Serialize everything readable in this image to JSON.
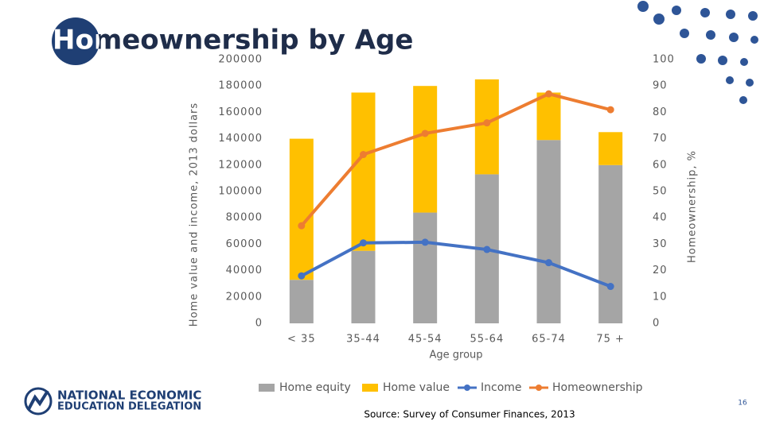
{
  "chart_data": {
    "type": "bar",
    "stacked": true,
    "title": "Homeownership by Age",
    "xlabel": "Age group",
    "ylabel": "Home value and income, 2013 dollars",
    "y2label": "Homeownership, %",
    "categories": [
      "< 35",
      "35-44",
      "45-54",
      "55-64",
      "65-74",
      "75 +"
    ],
    "series": [
      {
        "name": "Home equity",
        "type": "bar",
        "color": "#a5a5a5",
        "values": [
          33000,
          55000,
          84000,
          113000,
          139000,
          120000
        ]
      },
      {
        "name": "Home value",
        "type": "bar",
        "color": "#ffc000",
        "values": [
          107000,
          120000,
          96000,
          72000,
          36000,
          25000
        ]
      },
      {
        "name": "Income",
        "type": "line",
        "color": "#4472c4",
        "values": [
          36000,
          61000,
          61500,
          56000,
          46000,
          28000
        ]
      },
      {
        "name": "Homeownership",
        "type": "line",
        "color": "#ed7d31",
        "axis": "y2",
        "values": [
          37,
          64,
          72,
          76,
          87,
          81
        ]
      }
    ],
    "ylim": [
      0,
      200000
    ],
    "yticks": [
      0,
      20000,
      40000,
      60000,
      80000,
      100000,
      120000,
      140000,
      160000,
      180000,
      200000
    ],
    "y2lim": [
      0,
      100
    ],
    "y2ticks": [
      0,
      10,
      20,
      30,
      40,
      50,
      60,
      70,
      80,
      90,
      100
    ],
    "legend": "bottom"
  },
  "footer": {
    "source": "Source: Survey of Consumer Finances, 2013",
    "page": "16",
    "logo_line1": "NATIONAL ECONOMIC",
    "logo_line2": "EDUCATION DELEGATION"
  }
}
